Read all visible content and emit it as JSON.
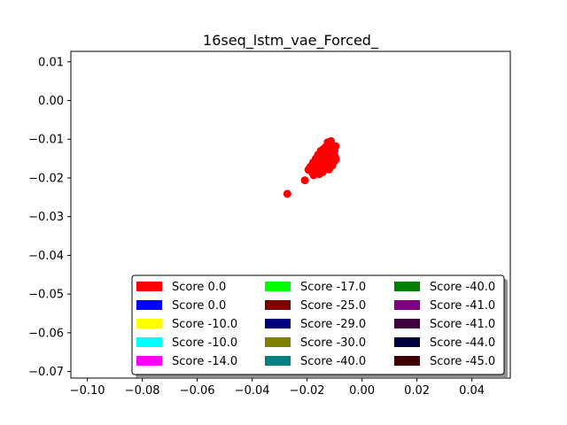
{
  "chart_data": {
    "type": "scatter",
    "title": "16seq_lstm_vae_Forced_",
    "xlabel": "",
    "ylabel": "",
    "xlim": [
      -0.106,
      0.054
    ],
    "ylim": [
      -0.0717,
      0.0127
    ],
    "xticks": [
      -0.1,
      -0.08,
      -0.06,
      -0.04,
      -0.02,
      0.0,
      0.02,
      0.04
    ],
    "xtick_labels": [
      "−0.10",
      "−0.08",
      "−0.06",
      "−0.04",
      "−0.02",
      "0.00",
      "0.02",
      "0.04"
    ],
    "yticks": [
      0.01,
      0.0,
      -0.01,
      -0.02,
      -0.03,
      -0.04,
      -0.05,
      -0.06,
      -0.07
    ],
    "ytick_labels": [
      "0.01",
      "0.00",
      "−0.01",
      "−0.02",
      "−0.03",
      "−0.04",
      "−0.05",
      "−0.06",
      "−0.07"
    ],
    "grid": false,
    "legend_position": "lower-right",
    "legend_columns": 3,
    "series": [
      {
        "name": "Score 0.0",
        "color": "#ff0000",
        "points": [
          [
            -0.0272,
            -0.0241
          ],
          [
            -0.0208,
            -0.0206
          ],
          [
            -0.0195,
            -0.0179
          ],
          [
            -0.0188,
            -0.0171
          ],
          [
            -0.0182,
            -0.0185
          ],
          [
            -0.0176,
            -0.0193
          ],
          [
            -0.0178,
            -0.016
          ],
          [
            -0.0172,
            -0.0175
          ],
          [
            -0.0168,
            -0.015
          ],
          [
            -0.0165,
            -0.0185
          ],
          [
            -0.016,
            -0.014
          ],
          [
            -0.016,
            -0.0168
          ],
          [
            -0.0156,
            -0.0158
          ],
          [
            -0.0155,
            -0.019
          ],
          [
            -0.0152,
            -0.0177
          ],
          [
            -0.015,
            -0.013
          ],
          [
            -0.0148,
            -0.015
          ],
          [
            -0.0145,
            -0.0165
          ],
          [
            -0.0143,
            -0.0185
          ],
          [
            -0.014,
            -0.0125
          ],
          [
            -0.0138,
            -0.014
          ],
          [
            -0.0136,
            -0.0158
          ],
          [
            -0.0135,
            -0.0172
          ],
          [
            -0.0132,
            -0.012
          ],
          [
            -0.013,
            -0.0148
          ],
          [
            -0.0128,
            -0.0135
          ],
          [
            -0.0127,
            -0.0165
          ],
          [
            -0.0125,
            -0.0108
          ],
          [
            -0.0123,
            -0.015
          ],
          [
            -0.0121,
            -0.0128
          ],
          [
            -0.012,
            -0.0178
          ],
          [
            -0.0118,
            -0.0115
          ],
          [
            -0.0116,
            -0.014
          ],
          [
            -0.0115,
            -0.016
          ],
          [
            -0.0113,
            -0.0105
          ],
          [
            -0.0111,
            -0.013
          ],
          [
            -0.011,
            -0.015
          ],
          [
            -0.0108,
            -0.0168
          ],
          [
            -0.0106,
            -0.012
          ],
          [
            -0.0104,
            -0.014
          ],
          [
            -0.0102,
            -0.0158
          ],
          [
            -0.01,
            -0.013
          ],
          [
            -0.0098,
            -0.0145
          ],
          [
            -0.0096,
            -0.0118
          ],
          [
            -0.0095,
            -0.0152
          ],
          [
            -0.0145,
            -0.0175
          ],
          [
            -0.015,
            -0.016
          ],
          [
            -0.0135,
            -0.0145
          ],
          [
            -0.012,
            -0.0135
          ],
          [
            -0.0112,
            -0.0145
          ],
          [
            -0.0128,
            -0.0155
          ],
          [
            -0.014,
            -0.0168
          ]
        ]
      },
      {
        "name": "Score 0.0",
        "color": "#0000ff",
        "points": []
      },
      {
        "name": "Score -10.0",
        "color": "#ffff00",
        "points": []
      },
      {
        "name": "Score -10.0",
        "color": "#00ffff",
        "points": []
      },
      {
        "name": "Score -14.0",
        "color": "#ff00ff",
        "points": []
      },
      {
        "name": "Score -17.0",
        "color": "#00ff00",
        "points": []
      },
      {
        "name": "Score -25.0",
        "color": "#800000",
        "points": []
      },
      {
        "name": "Score -29.0",
        "color": "#000080",
        "points": []
      },
      {
        "name": "Score -30.0",
        "color": "#808000",
        "points": []
      },
      {
        "name": "Score -40.0",
        "color": "#008080",
        "points": []
      },
      {
        "name": "Score -40.0",
        "color": "#008000",
        "points": []
      },
      {
        "name": "Score -41.0",
        "color": "#800080",
        "points": []
      },
      {
        "name": "Score -41.0",
        "color": "#400040",
        "points": []
      },
      {
        "name": "Score -44.0",
        "color": "#000040",
        "points": []
      },
      {
        "name": "Score -45.0",
        "color": "#400000",
        "points": []
      }
    ]
  }
}
